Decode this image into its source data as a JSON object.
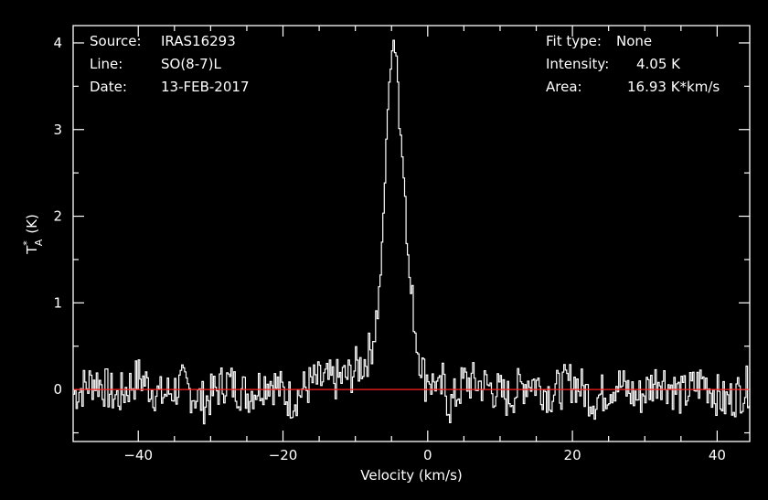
{
  "info_left": {
    "source_label": "Source:",
    "source_value": "IRAS16293",
    "line_label": "Line:",
    "line_value": "SO(8-7)L",
    "date_label": "Date:",
    "date_value": "13-FEB-2017"
  },
  "info_right": {
    "fit_label": "Fit type:",
    "fit_value": "None",
    "intensity_label": "Intensity:",
    "intensity_value": "4.05 K",
    "area_label": "Area:",
    "area_value": "16.93 K*km/s"
  },
  "chart_data": {
    "type": "line",
    "xlabel": "Velocity (km/s)",
    "ylabel_main": "T",
    "ylabel_sup": "*",
    "ylabel_sub": "A",
    "ylabel_unit": "(K)",
    "xlim": [
      -49,
      44.5
    ],
    "ylim": [
      -0.6,
      4.2
    ],
    "xticks": [
      -40,
      -20,
      0,
      20,
      40
    ],
    "yticks": [
      0,
      1,
      2,
      3,
      4
    ],
    "xtick_labels": [
      "−40",
      "−20",
      "0",
      "20",
      "40"
    ],
    "ytick_labels": [
      "0",
      "1",
      "2",
      "3",
      "4"
    ],
    "baseline": 0,
    "colors": {
      "spectrum": "#ffffff",
      "baseline": "#ff2020",
      "frame": "#ffffff",
      "background": "#000000"
    },
    "series": [
      {
        "x": [
          -49.0,
          -46.0,
          -43.0,
          -40.0,
          -37.0,
          -34.0,
          -31.0,
          -28.0,
          -25.0,
          -22.0,
          -19.0,
          -16.0,
          -13.0,
          -11.0,
          -10.0,
          -9.0,
          -8.0,
          -7.5,
          -7.0,
          -6.5,
          -6.0,
          -5.5,
          -5.0,
          -4.8,
          -4.6,
          -4.4,
          -4.2,
          -4.0,
          -3.8,
          -3.5,
          -3.2,
          -3.0,
          -2.7,
          -2.4,
          -2.1,
          -1.8,
          -1.5,
          -1.2,
          -0.8,
          -0.4,
          0.0,
          0.5,
          1.0,
          1.5,
          2.0,
          3.0,
          5.0,
          8.0,
          11.0,
          14.0,
          17.0,
          20.0,
          23.0,
          26.0,
          29.0,
          32.0,
          35.0,
          38.0,
          41.0,
          44.5
        ],
        "y": [
          -0.05,
          0.12,
          -0.1,
          0.15,
          -0.08,
          0.05,
          -0.15,
          0.1,
          -0.05,
          0.12,
          -0.12,
          0.08,
          0.1,
          0.15,
          0.25,
          0.3,
          0.45,
          0.65,
          0.95,
          1.45,
          2.4,
          3.5,
          3.85,
          4.02,
          3.95,
          3.9,
          3.55,
          3.05,
          2.95,
          2.55,
          2.3,
          1.75,
          1.4,
          1.1,
          0.95,
          0.7,
          0.5,
          0.4,
          0.25,
          0.1,
          0.2,
          0.05,
          0.12,
          -0.1,
          0.08,
          -0.2,
          0.1,
          0.05,
          -0.1,
          0.12,
          -0.05,
          0.1,
          -0.12,
          0.08,
          -0.1,
          0.15,
          -0.08,
          0.1,
          -0.15,
          0.05
        ]
      }
    ]
  }
}
